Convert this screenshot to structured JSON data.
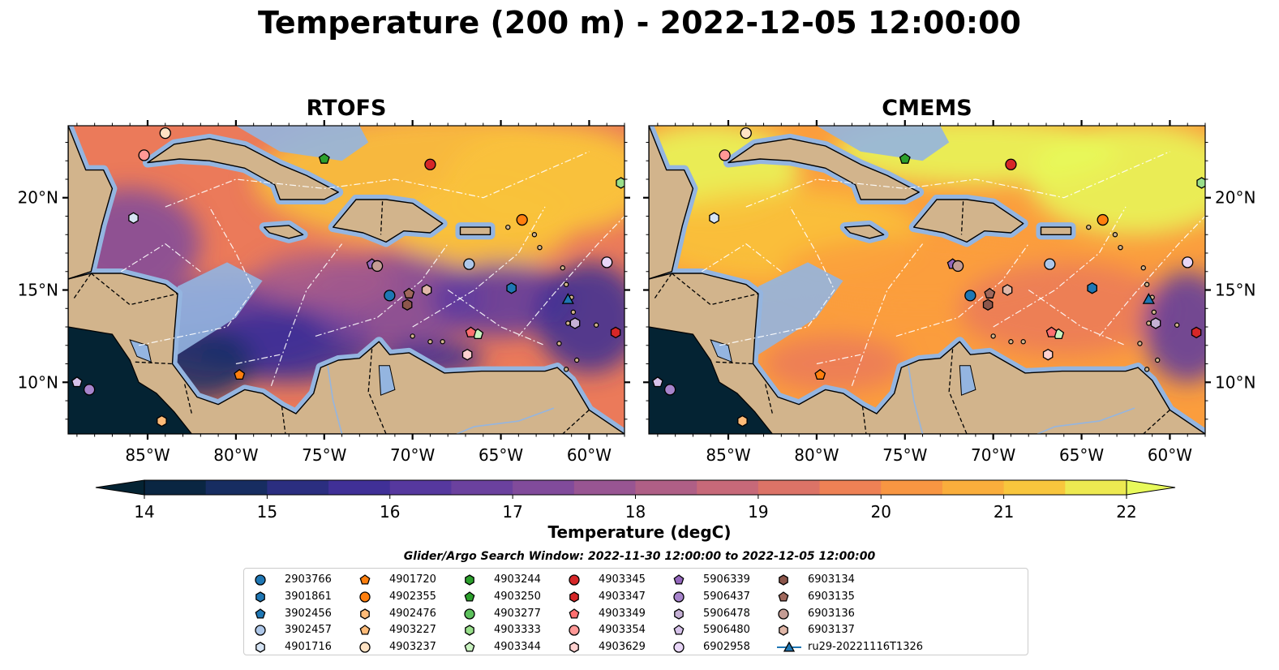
{
  "title": "Temperature (200 m) - 2022-12-05 12:00:00",
  "panels": [
    {
      "title": "RTOFS",
      "scheme": "rtofs"
    },
    {
      "title": "CMEMS",
      "scheme": "cmems"
    }
  ],
  "axes": {
    "lon_ticks": [
      "85°W",
      "80°W",
      "75°W",
      "70°W",
      "65°W",
      "60°W"
    ],
    "lat_ticks": [
      "20°N",
      "15°N",
      "10°N"
    ]
  },
  "colorbar": {
    "label": "Temperature (degC)",
    "min": 14,
    "max": 22,
    "tick_labels": [
      "14",
      "15",
      "16",
      "17",
      "18",
      "19",
      "20",
      "21",
      "22"
    ],
    "extend": "both",
    "colormap_stops": [
      "#042333",
      "#182e64",
      "#3a2e95",
      "#5c3aa0",
      "#7f4a9c",
      "#a35a8d",
      "#c96a78",
      "#eb7a5a",
      "#fb9d3d",
      "#f9c33b",
      "#e8fa5b"
    ]
  },
  "search_window": "Glider/Argo Search Window: 2022-11-30 12:00:00 to 2022-12-05 12:00:00",
  "colors": {
    "land": "#d2b48c",
    "shelf": "#94b5e0",
    "deep_ocean": "#042333",
    "coast": "#000000",
    "eez_line": "#ffffff"
  },
  "legend": [
    {
      "id": "2903766",
      "marker": "circle",
      "color": "#1f77b4"
    },
    {
      "id": "3901861",
      "marker": "hexagon",
      "color": "#1f77b4"
    },
    {
      "id": "3902456",
      "marker": "pentagon",
      "color": "#1f77b4"
    },
    {
      "id": "3902457",
      "marker": "circle",
      "color": "#aec7e8"
    },
    {
      "id": "4901716",
      "marker": "hexagon",
      "color": "#d6e4f4"
    },
    {
      "id": "4901720",
      "marker": "pentagon",
      "color": "#ff7f0e"
    },
    {
      "id": "4902355",
      "marker": "circle",
      "color": "#ff7f0e"
    },
    {
      "id": "4902476",
      "marker": "hexagon",
      "color": "#ffbb78"
    },
    {
      "id": "4903227",
      "marker": "pentagon",
      "color": "#ffbb78"
    },
    {
      "id": "4903237",
      "marker": "circle",
      "color": "#ffe3c4"
    },
    {
      "id": "4903244",
      "marker": "hexagon",
      "color": "#2ca02c"
    },
    {
      "id": "4903250",
      "marker": "pentagon",
      "color": "#2ca02c"
    },
    {
      "id": "4903277",
      "marker": "circle",
      "color": "#5cc05c"
    },
    {
      "id": "4903333",
      "marker": "hexagon",
      "color": "#98df8a"
    },
    {
      "id": "4903344",
      "marker": "pentagon",
      "color": "#c9f2c0"
    },
    {
      "id": "4903345",
      "marker": "circle",
      "color": "#d62728"
    },
    {
      "id": "4903347",
      "marker": "hexagon",
      "color": "#d62728"
    },
    {
      "id": "4903349",
      "marker": "pentagon",
      "color": "#ff6f6f"
    },
    {
      "id": "4903354",
      "marker": "circle",
      "color": "#ff9896"
    },
    {
      "id": "4903629",
      "marker": "hexagon",
      "color": "#ffd1d0"
    },
    {
      "id": "5906339",
      "marker": "pentagon",
      "color": "#9467bd"
    },
    {
      "id": "5906437",
      "marker": "circle",
      "color": "#a784cc"
    },
    {
      "id": "5906478",
      "marker": "hexagon",
      "color": "#c5b0d5"
    },
    {
      "id": "5906480",
      "marker": "pentagon",
      "color": "#d6c2ea"
    },
    {
      "id": "6902958",
      "marker": "circle",
      "color": "#e8d6f7"
    },
    {
      "id": "6903134",
      "marker": "hexagon",
      "color": "#8c564b"
    },
    {
      "id": "6903135",
      "marker": "pentagon",
      "color": "#a0685c"
    },
    {
      "id": "6903136",
      "marker": "circle",
      "color": "#c49c94"
    },
    {
      "id": "6903137",
      "marker": "hexagon",
      "color": "#e0b7a8"
    },
    {
      "id": "ru29-20221116T1326",
      "marker": "triangle-line",
      "color": "#1f77b4"
    }
  ],
  "floats_on_map": [
    {
      "id": "2903766",
      "lon": -71.3,
      "lat": 14.7
    },
    {
      "id": "3901861",
      "lon": -64.4,
      "lat": 15.1
    },
    {
      "id": "3902457",
      "lon": -66.8,
      "lat": 16.4
    },
    {
      "id": "4901716",
      "lon": -85.8,
      "lat": 18.9
    },
    {
      "id": "4901720",
      "lon": -79.8,
      "lat": 10.4
    },
    {
      "id": "4902355",
      "lon": -63.8,
      "lat": 18.8
    },
    {
      "id": "4902476",
      "lon": -84.2,
      "lat": 7.9
    },
    {
      "id": "4903237",
      "lon": -84.0,
      "lat": 23.5
    },
    {
      "id": "4903250",
      "lon": -75.0,
      "lat": 22.1
    },
    {
      "id": "4903333",
      "lon": -58.2,
      "lat": 20.8
    },
    {
      "id": "4903344",
      "lon": -66.3,
      "lat": 12.6
    },
    {
      "id": "4903345",
      "lon": -69.0,
      "lat": 21.8
    },
    {
      "id": "4903347",
      "lon": -58.5,
      "lat": 12.7
    },
    {
      "id": "4903349",
      "lon": -66.7,
      "lat": 12.7
    },
    {
      "id": "4903354",
      "lon": -85.2,
      "lat": 22.3
    },
    {
      "id": "4903629",
      "lon": -66.9,
      "lat": 11.5
    },
    {
      "id": "5906339",
      "lon": -72.3,
      "lat": 16.4
    },
    {
      "id": "5906478",
      "lon": -60.8,
      "lat": 13.2
    },
    {
      "id": "5906480",
      "lon": -89.0,
      "lat": 10.0
    },
    {
      "id": "6902958",
      "lon": -59.0,
      "lat": 16.5
    },
    {
      "id": "6903134",
      "lon": -70.3,
      "lat": 14.2
    },
    {
      "id": "6903135",
      "lon": -70.2,
      "lat": 14.8
    },
    {
      "id": "6903136",
      "lon": -72.0,
      "lat": 16.3
    },
    {
      "id": "6903137",
      "lon": -69.2,
      "lat": 15.0
    },
    {
      "id": "5906437",
      "lon": -88.3,
      "lat": 9.6
    },
    {
      "id": "ru29-20221116T1326",
      "lon": -61.2,
      "lat": 14.5
    }
  ],
  "extent": {
    "lon_min": -89.5,
    "lon_max": -58.0,
    "lat_min": 7.2,
    "lat_max": 23.9
  }
}
